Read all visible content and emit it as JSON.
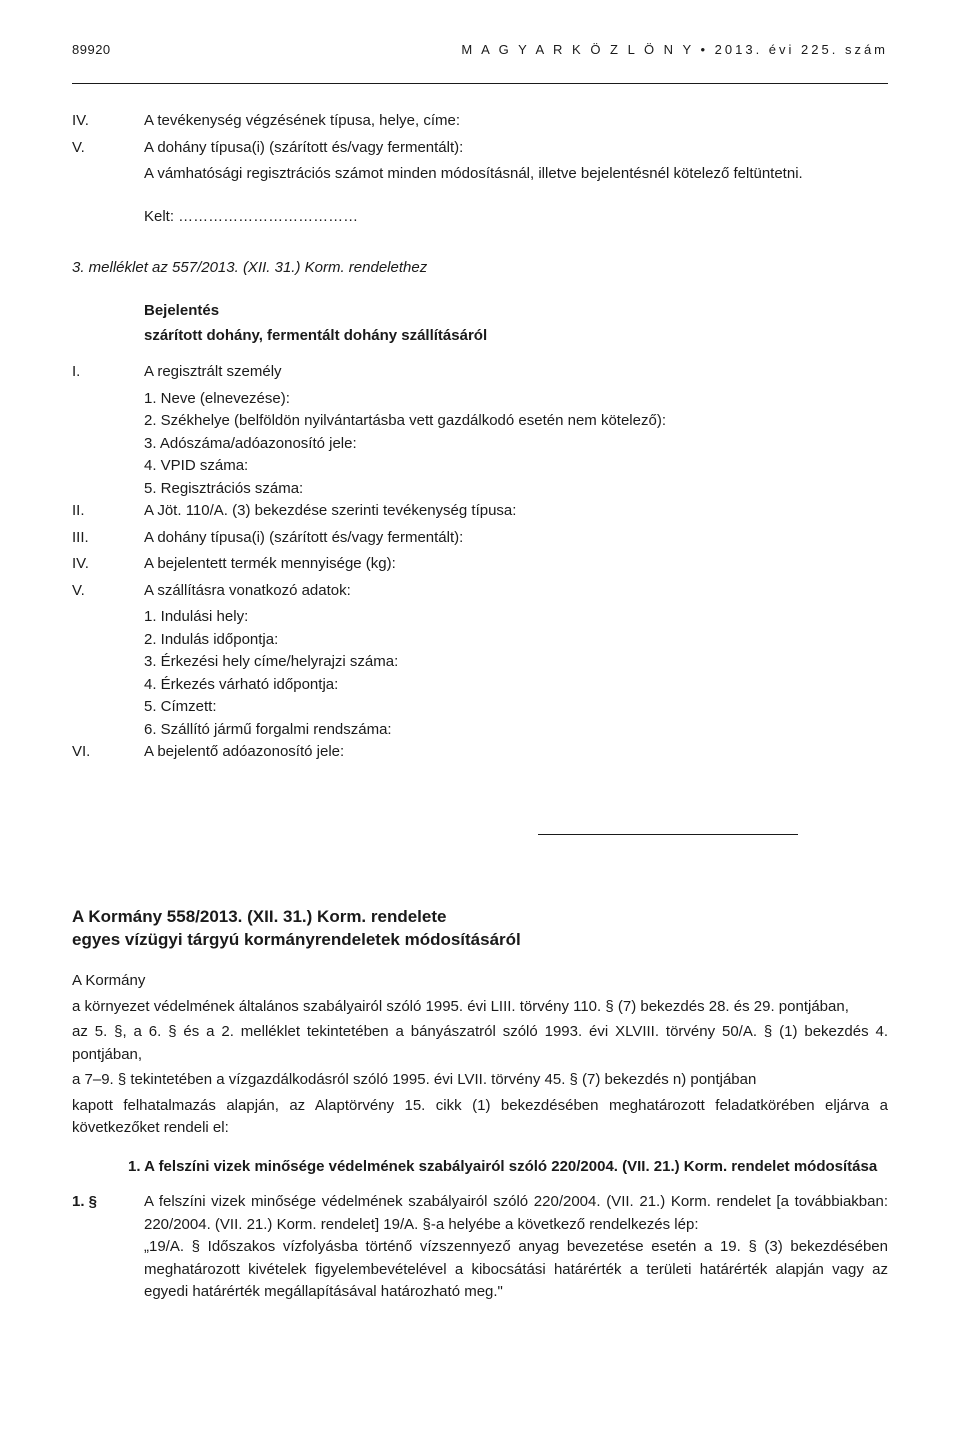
{
  "header": {
    "page_number": "89920",
    "journal_title": "M A G Y A R   K Ö Z L Ö N Y • 2013. évi 225. szám"
  },
  "section_iv": {
    "roman": "IV.",
    "text": "A tevékenység végzésének típusa, helye, címe:"
  },
  "section_v": {
    "roman": "V.",
    "line1": "A dohány típusa(i) (szárított és/vagy fermentált):",
    "line2": "A vámhatósági regisztrációs számot minden módosításnál, illetve bejelentésnél kötelező feltüntetni."
  },
  "kelt": "Kelt: ………………………………",
  "annex_title": "3. melléklet az 557/2013. (XII. 31.) Korm. rendelethez",
  "heading1": "Bejelentés",
  "heading2": "szárított dohány, fermentált dohány szállításáról",
  "list_i": {
    "roman": "I.",
    "text": "A regisztrált személy",
    "items": [
      "1. Neve (elnevezése):",
      "2. Székhelye (belföldön nyilvántartásba vett gazdálkodó esetén nem kötelező):",
      "3. Adószáma/adóazonosító jele:",
      "4. VPID száma:",
      "5. Regisztrációs száma:"
    ]
  },
  "list_ii": {
    "roman": "II.",
    "text": "A Jöt. 110/A. (3) bekezdése szerinti tevékenység típusa:"
  },
  "list_iii": {
    "roman": "III.",
    "text": "A dohány típusa(i) (szárított és/vagy fermentált):"
  },
  "list_iv": {
    "roman": "IV.",
    "text": "A bejelentett termék mennyisége (kg):"
  },
  "list_v": {
    "roman": "V.",
    "text": "A szállításra vonatkozó adatok:",
    "items": [
      "1. Indulási hely:",
      "2. Indulás időpontja:",
      "3. Érkezési hely címe/helyrajzi száma:",
      "4. Érkezés várható időpontja:",
      "5. Címzett:",
      "6. Szállító jármű forgalmi rendszáma:"
    ]
  },
  "list_vi": {
    "roman": "VI.",
    "text": "A bejelentő adóazonosító jele:"
  },
  "decree": {
    "title_line1": "A Kormány 558/2013. (XII. 31.) Korm. rendelete",
    "title_line2": "egyes vízügyi tárgyú kormányrendeletek módosításáról",
    "para1": "A Kormány",
    "para2": "a környezet védelmének általános szabályairól szóló 1995. évi LIII. törvény 110. § (7) bekezdés 28. és 29. pontjában,",
    "para3": "az 5. §, a 6. § és a 2. melléklet tekintetében a bányászatról szóló 1993. évi XLVIII. törvény 50/A. § (1) bekezdés 4. pontjában,",
    "para4": "a 7–9. § tekintetében a vízgazdálkodásról szóló 1995. évi LVII. törvény 45. § (7) bekezdés n) pontjában",
    "para5": "kapott felhatalmazás alapján, az Alaptörvény 15. cikk (1) bekezdésében meghatározott feladatkörében eljárva a következőket rendeli el:",
    "subheading": "1. A felszíni vizek minősége védelmének szabályairól szóló 220/2004. (VII. 21.) Korm. rendelet módosítása",
    "para_num": "1. §",
    "para6": "A felszíni vizek minősége védelmének szabályairól szóló 220/2004. (VII. 21.) Korm. rendelet [a továbbiakban: 220/2004. (VII. 21.) Korm. rendelet] 19/A. §-a helyébe a következő rendelkezés lép:",
    "para7": "„19/A. §   Időszakos vízfolyásba történő vízszennyező anyag bevezetése esetén a 19. § (3) bekezdésében meghatározott kivételek figyelembevételével a kibocsátási határérték a területi határérték alapján vagy az egyedi határérték megállapításával határozható meg.\""
  }
}
